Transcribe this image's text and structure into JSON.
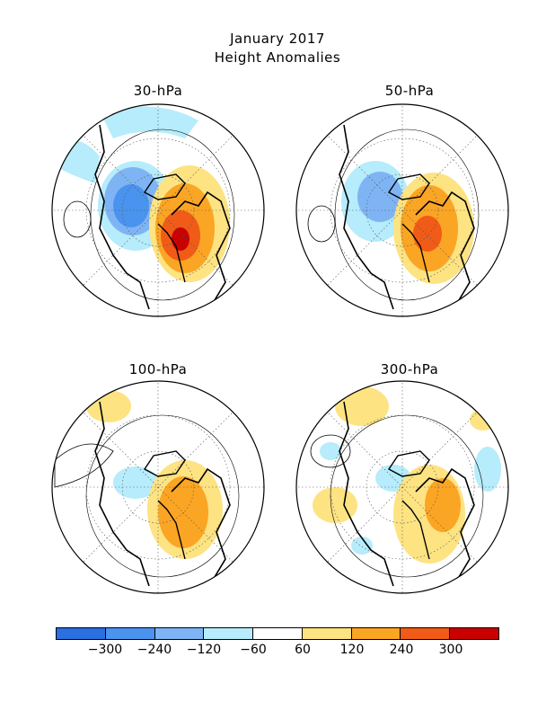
{
  "header": {
    "title": "January 2017",
    "subtitle": "Height Anomalies"
  },
  "panels": [
    {
      "label": "30-hPa"
    },
    {
      "label": "50-hPa"
    },
    {
      "label": "100-hPa"
    },
    {
      "label": "300-hPa"
    }
  ],
  "colorbar": {
    "colors": [
      "#2b6fe0",
      "#4a93ee",
      "#7fb4f4",
      "#b6ecfb",
      "#ffffff",
      "#fde382",
      "#fba524",
      "#f05b18",
      "#c80000"
    ],
    "tick_labels": [
      "−300",
      "−240",
      "−120",
      "−60",
      "60",
      "120",
      "240",
      "300"
    ]
  }
}
